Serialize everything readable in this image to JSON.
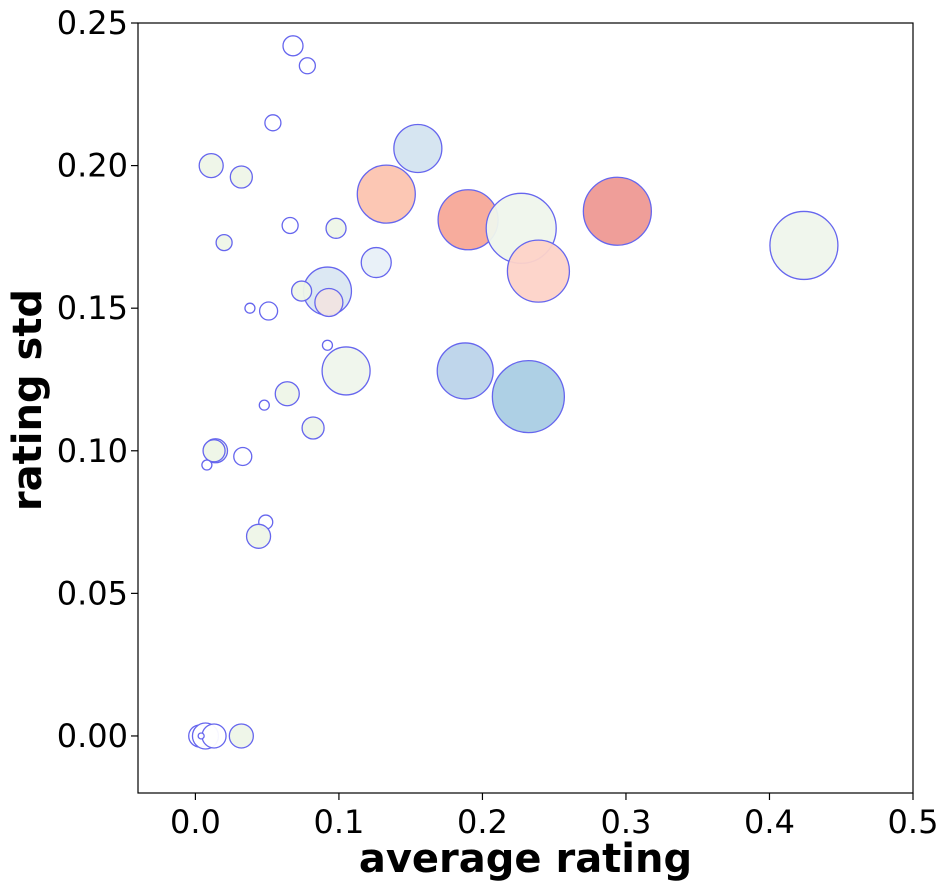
{
  "chart_data": {
    "type": "scatter",
    "title": "",
    "xlabel": "average rating",
    "ylabel": "rating std",
    "xlim": [
      -0.04,
      0.5
    ],
    "ylim": [
      -0.02,
      0.25
    ],
    "grid": false,
    "x_ticks": [
      {
        "value": 0.0,
        "label": "0.0"
      },
      {
        "value": 0.1,
        "label": "0.1"
      },
      {
        "value": 0.2,
        "label": "0.2"
      },
      {
        "value": 0.3,
        "label": "0.3"
      },
      {
        "value": 0.4,
        "label": "0.4"
      },
      {
        "value": 0.5,
        "label": "0.5"
      }
    ],
    "y_ticks": [
      {
        "value": 0.0,
        "label": "0.00"
      },
      {
        "value": 0.05,
        "label": "0.05"
      },
      {
        "value": 0.1,
        "label": "0.10"
      },
      {
        "value": 0.15,
        "label": "0.15"
      },
      {
        "value": 0.2,
        "label": "0.20"
      },
      {
        "value": 0.25,
        "label": "0.25"
      }
    ],
    "colors": {
      "edge": "#6666ee",
      "axis": "#000000"
    },
    "points": [
      {
        "x": 0.068,
        "y": 0.242,
        "r": 10,
        "fill": "#ffffff"
      },
      {
        "x": 0.078,
        "y": 0.235,
        "r": 8,
        "fill": "#ffffff"
      },
      {
        "x": 0.054,
        "y": 0.215,
        "r": 8,
        "fill": "#ffffff"
      },
      {
        "x": 0.155,
        "y": 0.206,
        "r": 24,
        "fill": "#d4e4f0"
      },
      {
        "x": 0.011,
        "y": 0.2,
        "r": 12,
        "fill": "#eef6e8"
      },
      {
        "x": 0.032,
        "y": 0.196,
        "r": 11,
        "fill": "#eef6e8"
      },
      {
        "x": 0.133,
        "y": 0.19,
        "r": 29,
        "fill": "#fcc4b0"
      },
      {
        "x": 0.19,
        "y": 0.181,
        "r": 30,
        "fill": "#f7a898"
      },
      {
        "x": 0.294,
        "y": 0.184,
        "r": 34,
        "fill": "#ee9994"
      },
      {
        "x": 0.227,
        "y": 0.178,
        "r": 35,
        "fill": "#eff6ec"
      },
      {
        "x": 0.066,
        "y": 0.179,
        "r": 8,
        "fill": "#ffffff"
      },
      {
        "x": 0.098,
        "y": 0.178,
        "r": 10,
        "fill": "#eef6e8"
      },
      {
        "x": 0.02,
        "y": 0.173,
        "r": 8,
        "fill": "#eef6e8"
      },
      {
        "x": 0.424,
        "y": 0.172,
        "r": 34,
        "fill": "#eff6ec"
      },
      {
        "x": 0.126,
        "y": 0.166,
        "r": 15,
        "fill": "#e8f0f8"
      },
      {
        "x": 0.239,
        "y": 0.163,
        "r": 31,
        "fill": "#fdd3c8"
      },
      {
        "x": 0.092,
        "y": 0.156,
        "r": 24,
        "fill": "#dae7f2"
      },
      {
        "x": 0.074,
        "y": 0.156,
        "r": 10,
        "fill": "#eef6e8"
      },
      {
        "x": 0.093,
        "y": 0.152,
        "r": 14,
        "fill": "#f0e4e2"
      },
      {
        "x": 0.038,
        "y": 0.15,
        "r": 5,
        "fill": "#ffffff"
      },
      {
        "x": 0.051,
        "y": 0.149,
        "r": 9,
        "fill": "#ffffff"
      },
      {
        "x": 0.092,
        "y": 0.137,
        "r": 5,
        "fill": "#ffffff"
      },
      {
        "x": 0.188,
        "y": 0.128,
        "r": 28,
        "fill": "#bcd4ea"
      },
      {
        "x": 0.105,
        "y": 0.128,
        "r": 24,
        "fill": "#eff6ec"
      },
      {
        "x": 0.232,
        "y": 0.119,
        "r": 36,
        "fill": "#aacde4"
      },
      {
        "x": 0.064,
        "y": 0.12,
        "r": 12,
        "fill": "#eef6e8"
      },
      {
        "x": 0.048,
        "y": 0.116,
        "r": 5,
        "fill": "#ffffff"
      },
      {
        "x": 0.082,
        "y": 0.108,
        "r": 11,
        "fill": "#eef6e8"
      },
      {
        "x": 0.014,
        "y": 0.1,
        "r": 12,
        "fill": "#eef6e8"
      },
      {
        "x": 0.013,
        "y": 0.1,
        "r": 11,
        "fill": "#eef6e8"
      },
      {
        "x": 0.033,
        "y": 0.098,
        "r": 9,
        "fill": "#ffffff"
      },
      {
        "x": 0.008,
        "y": 0.095,
        "r": 5,
        "fill": "#ffffff"
      },
      {
        "x": 0.049,
        "y": 0.075,
        "r": 7,
        "fill": "#ffffff"
      },
      {
        "x": 0.044,
        "y": 0.07,
        "r": 12,
        "fill": "#eef6e8"
      },
      {
        "x": 0.003,
        "y": 0.0,
        "r": 11,
        "fill": "#ffffff"
      },
      {
        "x": 0.007,
        "y": 0.0,
        "r": 13,
        "fill": "#ffffff"
      },
      {
        "x": 0.013,
        "y": 0.0,
        "r": 12,
        "fill": "#ffffff"
      },
      {
        "x": 0.032,
        "y": 0.0,
        "r": 12,
        "fill": "#eef6e8"
      },
      {
        "x": 0.004,
        "y": 0.0,
        "r": 3,
        "fill": "#ffffff"
      }
    ]
  }
}
